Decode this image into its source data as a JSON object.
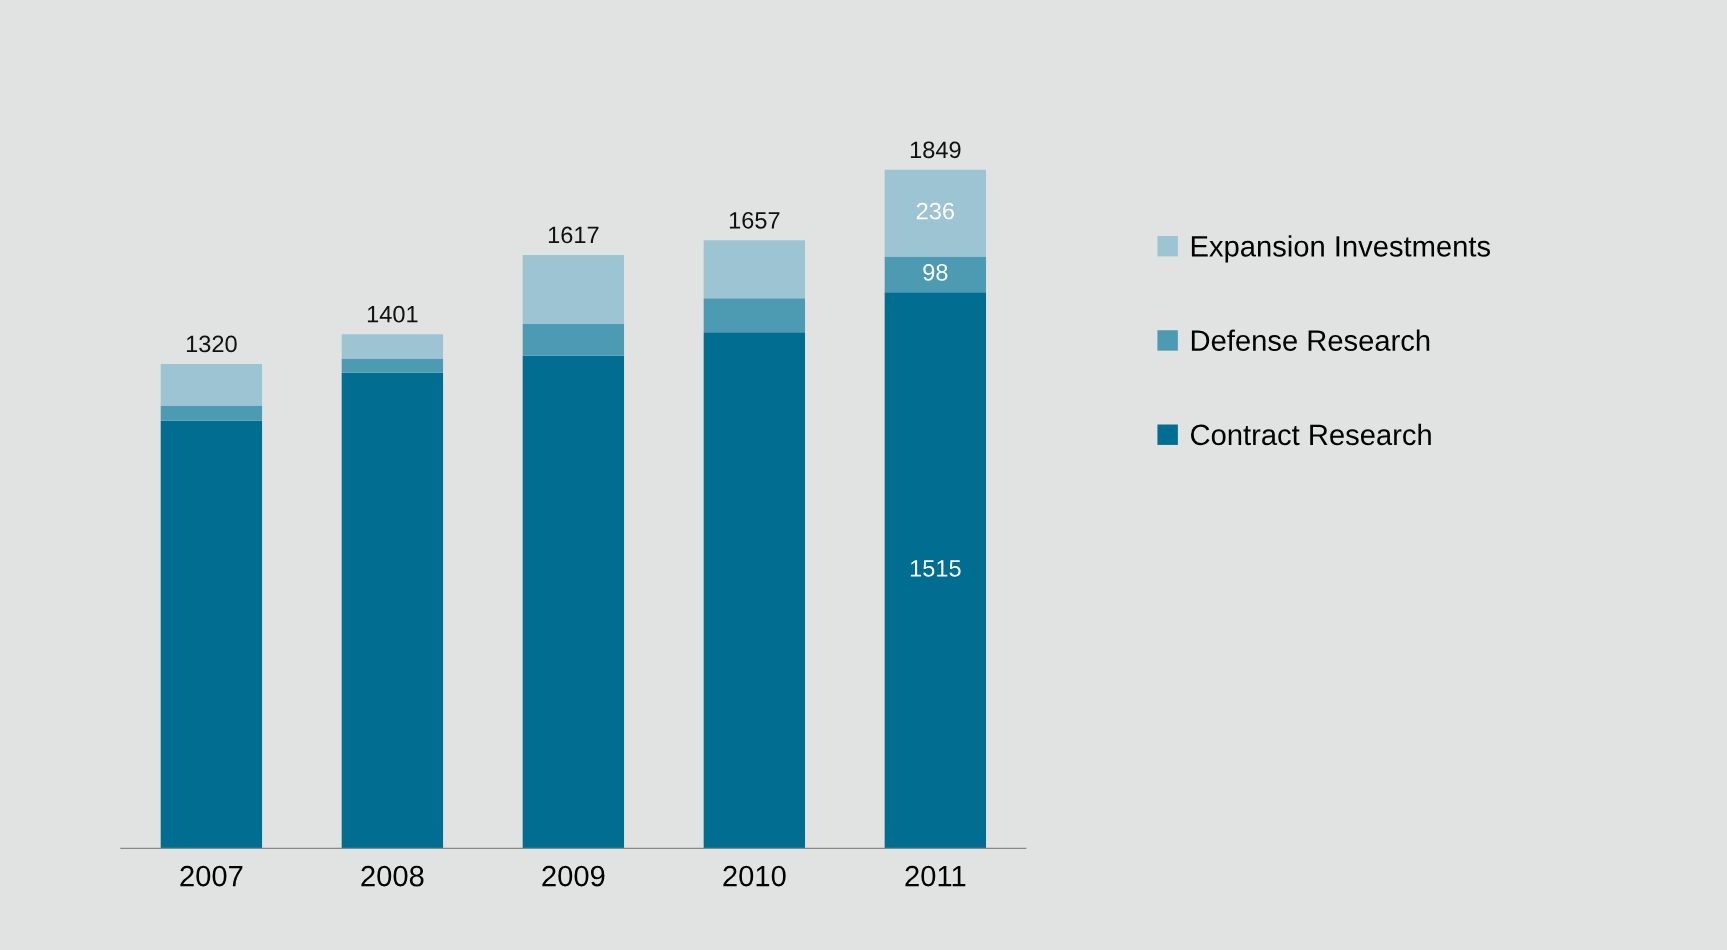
{
  "chart_data": {
    "type": "bar",
    "stacked": true,
    "categories": [
      "2007",
      "2008",
      "2009",
      "2010",
      "2011"
    ],
    "series": [
      {
        "name": "Contract Research",
        "color": "#006d91",
        "values": [
          1165,
          1296,
          1342,
          1406,
          1515
        ],
        "value_labels": [
          null,
          null,
          null,
          null,
          "1515"
        ]
      },
      {
        "name": "Defense Research",
        "color": "#4d9bb3",
        "values": [
          42,
          39,
          87,
          93,
          98
        ],
        "value_labels": [
          null,
          null,
          null,
          null,
          "98"
        ]
      },
      {
        "name": "Expansion Investments",
        "color": "#9cc4d3",
        "values": [
          113,
          66,
          188,
          158,
          236
        ],
        "value_labels": [
          null,
          null,
          null,
          null,
          "236"
        ]
      }
    ],
    "totals": [
      "1320",
      "1401",
      "1617",
      "1657",
      "1849"
    ],
    "legend": "right"
  }
}
